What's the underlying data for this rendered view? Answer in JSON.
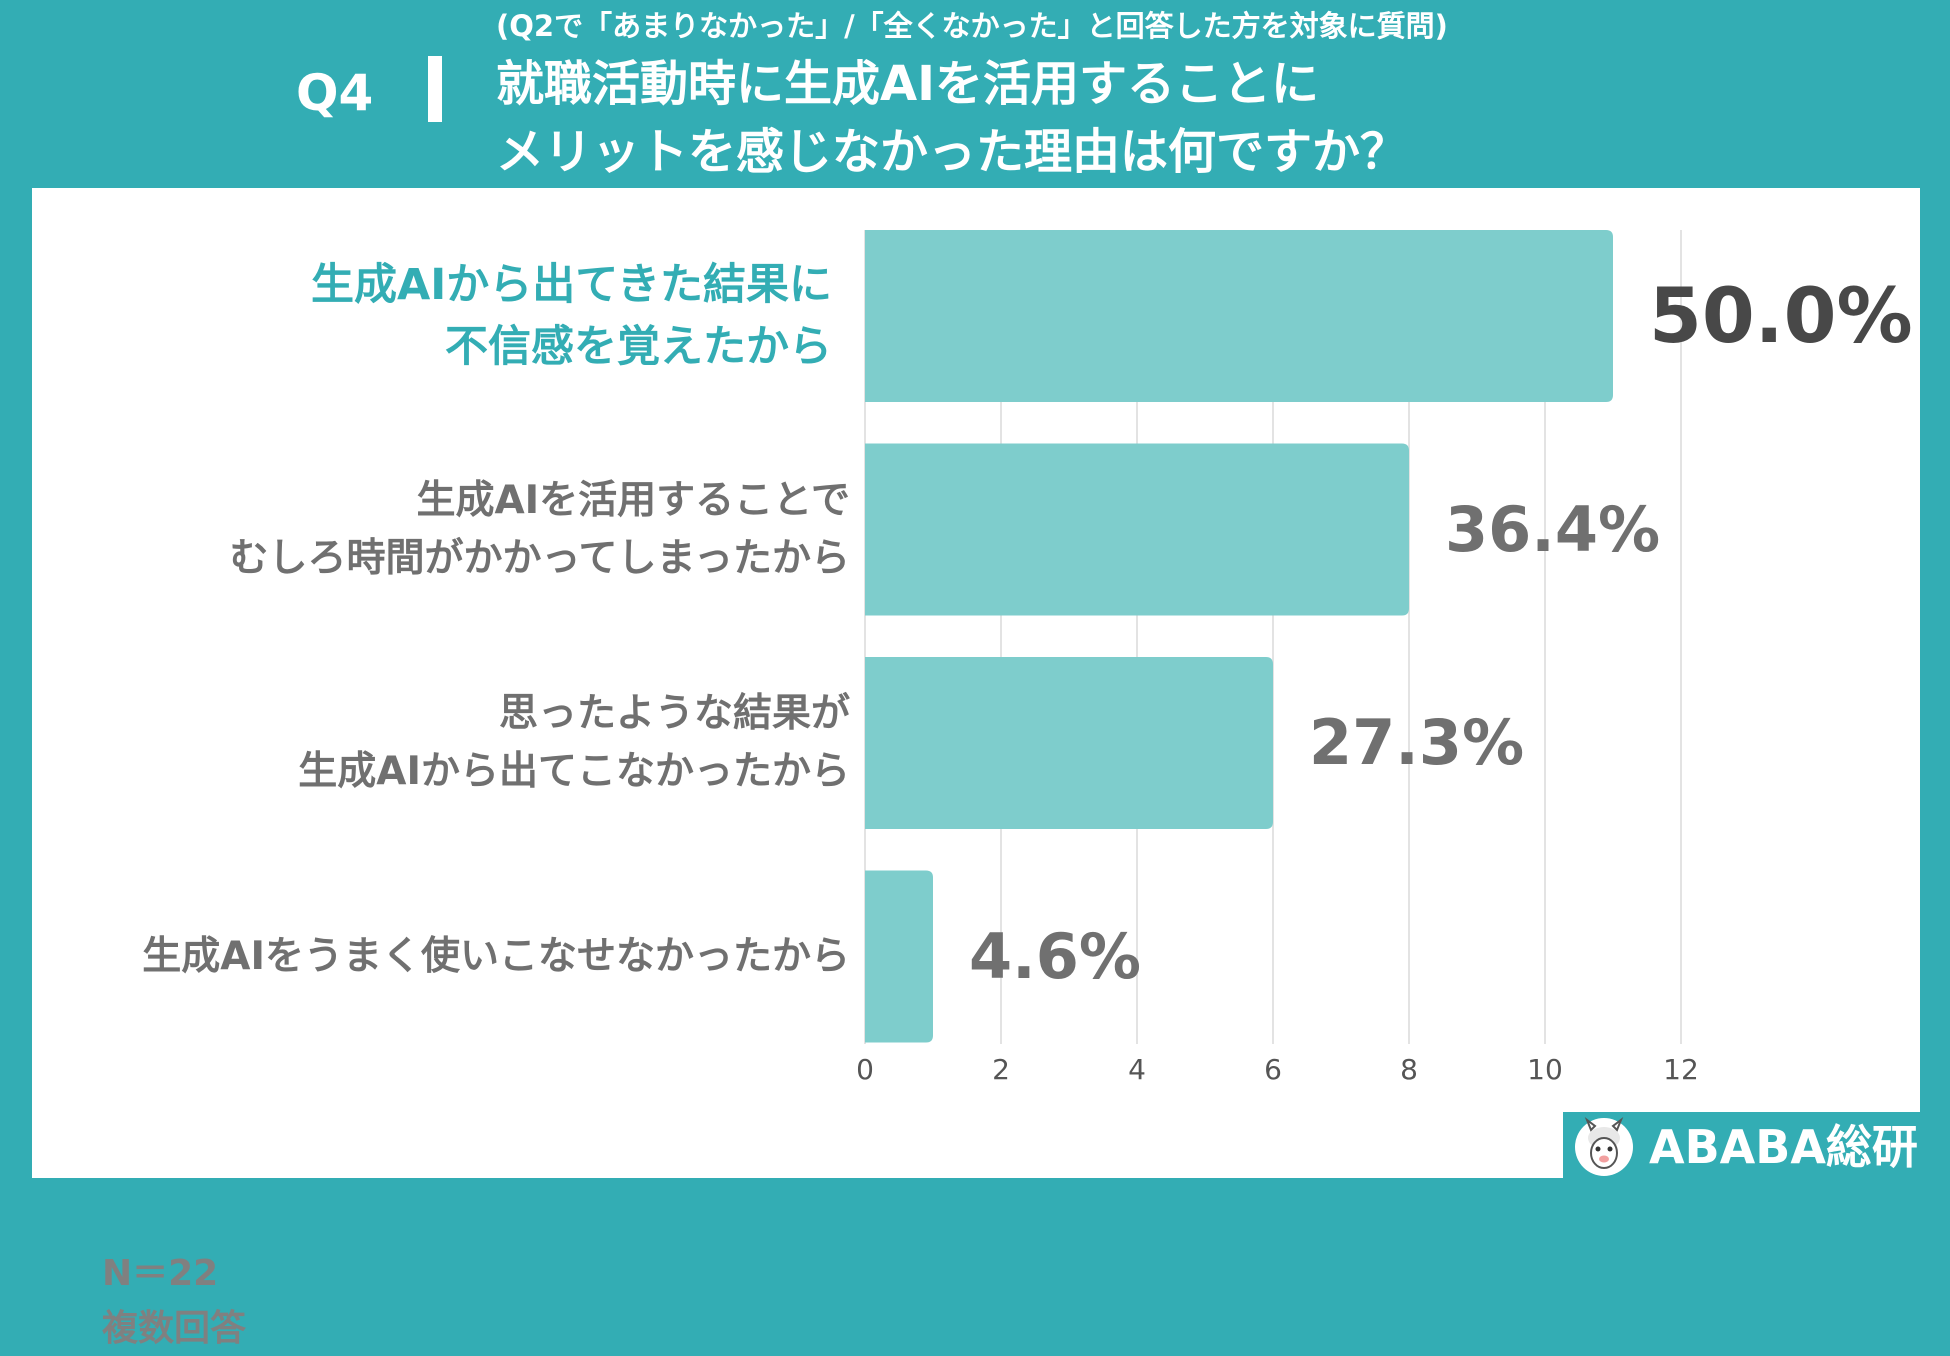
{
  "header": {
    "q_label": "Q4",
    "subtitle": "(Q2で「あまりなかった」/「全くなかった」と回答した方を対象に質問)",
    "title_line1": "就職活動時に生成AIを活用することに",
    "title_line2": "メリットを感じなかった理由は何ですか？"
  },
  "note": {
    "n": "N＝22",
    "multi": "複数回答"
  },
  "brand": {
    "name": "ABABA総研",
    "logo_icon": "alpaca-logo-icon"
  },
  "colors": {
    "background": "#33adb4",
    "bar": "#7ecdcc",
    "highlight_text": "#33adb4",
    "label_text": "#707070",
    "grid": "#e3e3e3"
  },
  "chart_data": {
    "type": "bar",
    "orientation": "horizontal",
    "categories": [
      [
        "生成AIから出てきた結果に",
        "不信感を覚えたから"
      ],
      [
        "生成AIを活用することで",
        "むしろ時間がかかってしまったから"
      ],
      [
        "思ったような結果が",
        "生成AIから出てこなかったから"
      ],
      [
        "生成AIをうまく使いこなせなかったから"
      ]
    ],
    "values": [
      11,
      8,
      6,
      1
    ],
    "percent_labels": [
      "50.0%",
      "36.4%",
      "27.3%",
      "4.6%"
    ],
    "xlim": [
      0,
      12
    ],
    "ticks": [
      "0",
      "2",
      "4",
      "6",
      "8",
      "10",
      "12"
    ],
    "grid": true,
    "highlight_index": 0
  }
}
